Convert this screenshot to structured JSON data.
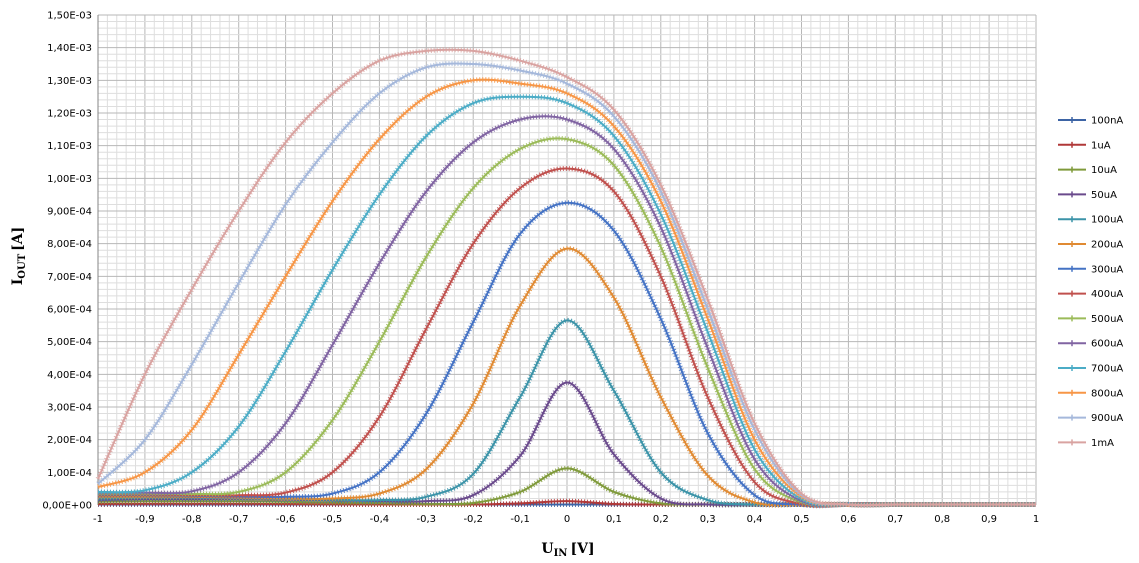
{
  "chart_data": {
    "type": "line",
    "title": "",
    "xlabel": {
      "main": "U",
      "sub": "IN",
      "unit": "[V]"
    },
    "ylabel": {
      "main": "I",
      "sub": "OUT",
      "unit": "[A]"
    },
    "xlim": [
      -1,
      1
    ],
    "ylim": [
      0,
      0.0015
    ],
    "grid": true,
    "legend_position": "right",
    "x_tick_labels": [
      "-1",
      "-0,9",
      "-0,8",
      "-0,7",
      "-0,6",
      "-0,5",
      "-0,4",
      "-0,3",
      "-0,2",
      "-0,1",
      "0",
      "0,1",
      "0,2",
      "0,3",
      "0,4",
      "0,5",
      "0,6",
      "0,7",
      "0,8",
      "0,9",
      "1"
    ],
    "y_tick_labels": [
      "0,00E+00",
      "1,00E-04",
      "2,00E-04",
      "3,00E-04",
      "4,00E-04",
      "5,00E-04",
      "6,00E-04",
      "7,00E-04",
      "8,00E-04",
      "9,00E-04",
      "1,00E-03",
      "1,10E-03",
      "1,20E-03",
      "1,30E-03",
      "1,40E-03",
      "1,50E-03"
    ],
    "x": [
      -1,
      -0.9,
      -0.8,
      -0.7,
      -0.6,
      -0.5,
      -0.4,
      -0.3,
      -0.2,
      -0.1,
      0,
      0.1,
      0.2,
      0.3,
      0.4,
      0.5,
      0.6,
      0.7,
      0.8,
      0.9,
      1
    ],
    "series": [
      {
        "name": "100nA",
        "color": "#3d64a5",
        "values": [
          0,
          0,
          0,
          0,
          0,
          0,
          0,
          0,
          0,
          0,
          1.1e-06,
          0,
          0,
          0,
          0,
          0,
          0,
          0,
          0,
          0,
          0
        ]
      },
      {
        "name": "1uA",
        "color": "#b03838",
        "values": [
          3e-06,
          4e-06,
          4e-06,
          4e-06,
          3e-06,
          2e-06,
          1e-06,
          0,
          0,
          5e-06,
          1.2e-05,
          3e-06,
          0,
          0,
          0,
          0,
          0,
          0,
          0,
          0,
          0
        ]
      },
      {
        "name": "10uA",
        "color": "#7f9a3a",
        "values": [
          1e-05,
          1.2e-05,
          1.2e-05,
          1.2e-05,
          1e-05,
          8e-06,
          6e-06,
          4e-06,
          6e-06,
          4e-05,
          0.000112,
          4e-05,
          5e-06,
          0,
          0,
          0,
          0,
          0,
          0,
          0,
          0
        ]
      },
      {
        "name": "50uA",
        "color": "#6a4a8c",
        "values": [
          1.5e-05,
          1.8e-05,
          1.8e-05,
          1.8e-05,
          1.6e-05,
          1.4e-05,
          1.2e-05,
          1.2e-05,
          3e-05,
          0.00015,
          0.000375,
          0.000155,
          2e-05,
          1e-06,
          0,
          0,
          0,
          0,
          0,
          0,
          0
        ]
      },
      {
        "name": "100uA",
        "color": "#3b93a8",
        "values": [
          2e-05,
          2.2e-05,
          2.2e-05,
          2e-05,
          1.8e-05,
          1.6e-05,
          1.5e-05,
          2.5e-05,
          9.5e-05,
          0.00033,
          0.000565,
          0.00035,
          0.0001,
          1.5e-05,
          0,
          0,
          0,
          0,
          0,
          0,
          0
        ]
      },
      {
        "name": "200uA",
        "color": "#e08a32",
        "values": [
          2.5e-05,
          2.5e-05,
          2.5e-05,
          2.2e-05,
          2e-05,
          2e-05,
          3.5e-05,
          0.00011,
          0.00031,
          0.00061,
          0.000785,
          0.000635,
          0.00033,
          9e-05,
          8e-06,
          0,
          0,
          0,
          0,
          0,
          0
        ]
      },
      {
        "name": "300uA",
        "color": "#4472c4",
        "values": [
          3e-05,
          3e-05,
          2.8e-05,
          2.6e-05,
          2.5e-05,
          3.5e-05,
          0.0001,
          0.00028,
          0.00056,
          0.00083,
          0.000925,
          0.00084,
          0.00057,
          0.00022,
          3e-05,
          0,
          0,
          0,
          0,
          0,
          0
        ]
      },
      {
        "name": "400uA",
        "color": "#c0504d",
        "values": [
          3.2e-05,
          3.2e-05,
          3e-05,
          3e-05,
          3.8e-05,
          0.0001,
          0.00027,
          0.00054,
          0.0008,
          0.00097,
          0.00103,
          0.00096,
          0.0007,
          0.00033,
          7e-05,
          3e-06,
          0,
          0,
          0,
          0,
          0
        ]
      },
      {
        "name": "500uA",
        "color": "#9bbb59",
        "values": [
          3.5e-05,
          3.5e-05,
          3.4e-05,
          4e-05,
          0.0001,
          0.00026,
          0.0005,
          0.00076,
          0.00097,
          0.00109,
          0.00112,
          0.00104,
          0.00079,
          0.00042,
          0.00011,
          8e-06,
          0,
          0,
          0,
          0,
          0
        ]
      },
      {
        "name": "600uA",
        "color": "#8064a2",
        "values": [
          3.8e-05,
          3.8e-05,
          4.2e-05,
          0.0001,
          0.00025,
          0.00049,
          0.00074,
          0.00096,
          0.00111,
          0.00118,
          0.00118,
          0.00109,
          0.00085,
          0.00048,
          0.00014,
          1.2e-05,
          0,
          0,
          0,
          0,
          0
        ]
      },
      {
        "name": "700uA",
        "color": "#4bacc6",
        "values": [
          4e-05,
          4.5e-05,
          0.0001,
          0.00024,
          0.00047,
          0.00072,
          0.00095,
          0.00113,
          0.00123,
          0.00125,
          0.00123,
          0.00113,
          0.00089,
          0.00053,
          0.00017,
          1.8e-05,
          0,
          0,
          0,
          0,
          0
        ]
      },
      {
        "name": "800uA",
        "color": "#f79646",
        "values": [
          5.5e-05,
          0.0001,
          0.00023,
          0.00046,
          0.0007,
          0.00093,
          0.00112,
          0.00125,
          0.0013,
          0.00129,
          0.00126,
          0.00116,
          0.00093,
          0.00057,
          0.0002,
          2.5e-05,
          0,
          0,
          0,
          0,
          0
        ]
      },
      {
        "name": "900uA",
        "color": "#a5b8db",
        "values": [
          6.5e-05,
          0.0002,
          0.00043,
          0.00068,
          0.00092,
          0.00111,
          0.00126,
          0.00134,
          0.00135,
          0.00133,
          0.00129,
          0.00119,
          0.00096,
          0.0006,
          0.00023,
          3e-05,
          0,
          0,
          0,
          0,
          0
        ]
      },
      {
        "name": "1mA",
        "color": "#d9a3a1",
        "values": [
          8e-05,
          0.0004,
          0.00066,
          0.0009,
          0.00111,
          0.00126,
          0.00136,
          0.00139,
          0.00139,
          0.00136,
          0.00131,
          0.00121,
          0.00098,
          0.00063,
          0.00025,
          3.5e-05,
          0,
          0,
          0,
          0,
          0
        ]
      }
    ]
  }
}
